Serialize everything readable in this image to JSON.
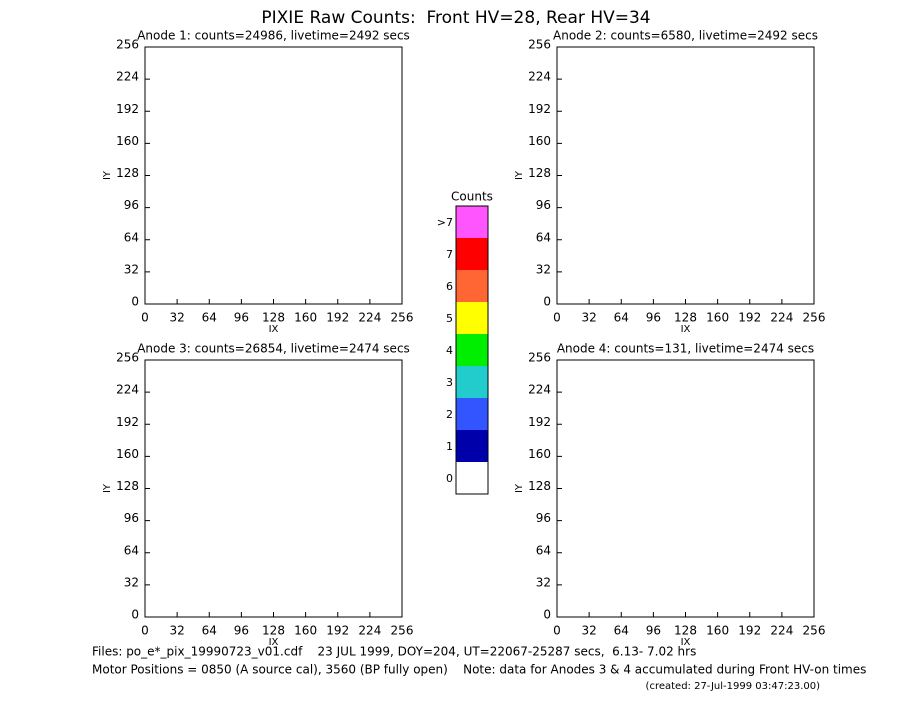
{
  "title": "PIXIE Raw Counts:  Front HV=28, Rear HV=34",
  "chart_data": [
    {
      "type": "heatmap",
      "title": "Anode 1: counts=24986, livetime=2492 secs",
      "xlabel": "IX",
      "ylabel": "IY",
      "xlim": [
        0,
        256
      ],
      "ylim": [
        0,
        256
      ],
      "xticks": [
        0,
        32,
        64,
        96,
        128,
        160,
        192,
        224,
        256
      ],
      "yticks": [
        0,
        32,
        64,
        96,
        128,
        160,
        192,
        224,
        256
      ]
    },
    {
      "type": "heatmap",
      "title": "Anode 2: counts=6580, livetime=2492 secs",
      "xlabel": "IX",
      "ylabel": "IY",
      "xlim": [
        0,
        256
      ],
      "ylim": [
        0,
        256
      ],
      "xticks": [
        0,
        32,
        64,
        96,
        128,
        160,
        192,
        224,
        256
      ],
      "yticks": [
        0,
        32,
        64,
        96,
        128,
        160,
        192,
        224,
        256
      ]
    },
    {
      "type": "heatmap",
      "title": "Anode 3: counts=26854, livetime=2474 secs",
      "xlabel": "IX",
      "ylabel": "IY",
      "xlim": [
        0,
        256
      ],
      "ylim": [
        0,
        256
      ],
      "xticks": [
        0,
        32,
        64,
        96,
        128,
        160,
        192,
        224,
        256
      ],
      "yticks": [
        0,
        32,
        64,
        96,
        128,
        160,
        192,
        224,
        256
      ]
    },
    {
      "type": "heatmap",
      "title": "Anode 4: counts=131, livetime=2474 secs",
      "xlabel": "IX",
      "ylabel": "IY",
      "xlim": [
        0,
        256
      ],
      "ylim": [
        0,
        256
      ],
      "xticks": [
        0,
        32,
        64,
        96,
        128,
        160,
        192,
        224,
        256
      ],
      "yticks": [
        0,
        32,
        64,
        96,
        128,
        160,
        192,
        224,
        256
      ]
    }
  ],
  "colorbar": {
    "title": "Counts",
    "labels": [
      ">7",
      "7",
      "6",
      "5",
      "4",
      "3",
      "2",
      "1",
      "0"
    ],
    "colors": [
      "#ff55ff",
      "#ff0000",
      "#ff6633",
      "#ffff00",
      "#00ee00",
      "#22cccc",
      "#3355ff",
      "#0000aa",
      "#ffffff"
    ]
  },
  "footer": {
    "files": "Files: po_e*_pix_19990723_v01.cdf    23 JUL 1999, DOY=204, UT=22067-25287 secs,  6.13- 7.02 hrs",
    "motor": "Motor Positions = 0850 (A source cal), 3560 (BP fully open)    Note: data for Anodes 3 & 4 accumulated during Front HV-on times",
    "created": "(created: 27-Jul-1999 03:47:23.00)"
  }
}
